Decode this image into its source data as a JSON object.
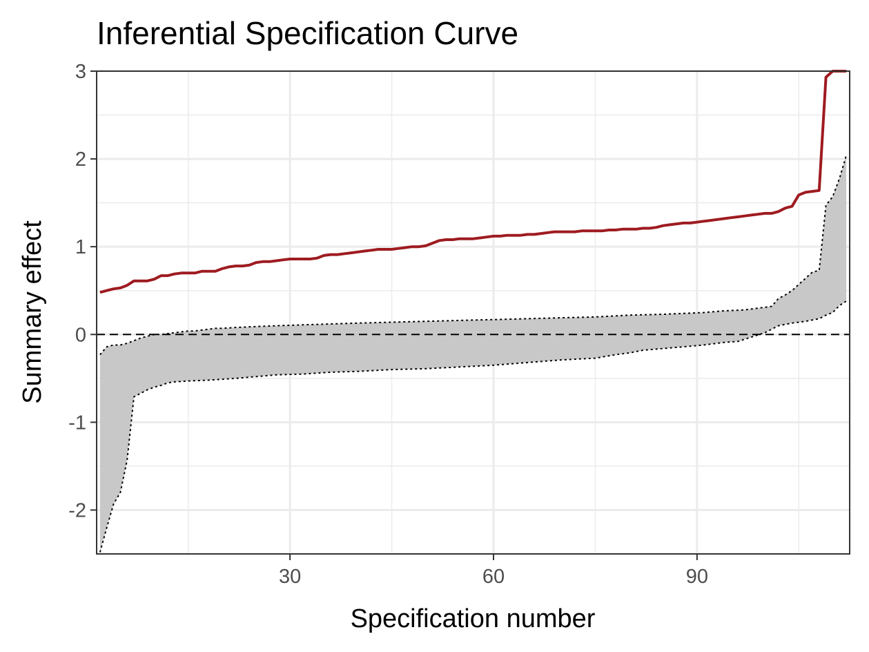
{
  "chart_data": {
    "type": "line",
    "title": "Inferential Specification Curve",
    "xlabel": "Specification number",
    "ylabel": "Summary effect",
    "xlim": [
      1.5,
      112.5
    ],
    "ylim": [
      -2.5,
      3
    ],
    "x_ticks": [
      30,
      60,
      90
    ],
    "x_tick_labels": [
      "30",
      "60",
      "90"
    ],
    "y_ticks": [
      -2,
      -1,
      0,
      1,
      2,
      3
    ],
    "y_tick_labels": [
      "-2",
      "-1",
      "0",
      "1",
      "2",
      "3"
    ],
    "grid": true,
    "legend": "none",
    "reference_line": 0,
    "colors": {
      "observed": "#9e1b20",
      "band": "#c8c8c8",
      "bounds": "#000000",
      "grid": "#ebebeb",
      "panel_border": "#333333"
    },
    "series": [
      {
        "role": "observed",
        "style": "solid",
        "points": [
          [
            2,
            0.48
          ],
          [
            3,
            0.5
          ],
          [
            4,
            0.52
          ],
          [
            5,
            0.53
          ],
          [
            6,
            0.56
          ],
          [
            7,
            0.61
          ],
          [
            8,
            0.61
          ],
          [
            9,
            0.61
          ],
          [
            10,
            0.63
          ],
          [
            11,
            0.67
          ],
          [
            12,
            0.67
          ],
          [
            13,
            0.69
          ],
          [
            14,
            0.7
          ],
          [
            15,
            0.7
          ],
          [
            16,
            0.7
          ],
          [
            17,
            0.72
          ],
          [
            18,
            0.72
          ],
          [
            19,
            0.72
          ],
          [
            20,
            0.75
          ],
          [
            21,
            0.77
          ],
          [
            22,
            0.78
          ],
          [
            23,
            0.78
          ],
          [
            24,
            0.79
          ],
          [
            25,
            0.82
          ],
          [
            26,
            0.83
          ],
          [
            27,
            0.83
          ],
          [
            28,
            0.84
          ],
          [
            29,
            0.85
          ],
          [
            30,
            0.86
          ],
          [
            31,
            0.86
          ],
          [
            32,
            0.86
          ],
          [
            33,
            0.86
          ],
          [
            34,
            0.87
          ],
          [
            35,
            0.9
          ],
          [
            36,
            0.91
          ],
          [
            37,
            0.91
          ],
          [
            38,
            0.92
          ],
          [
            39,
            0.93
          ],
          [
            40,
            0.94
          ],
          [
            41,
            0.95
          ],
          [
            42,
            0.96
          ],
          [
            43,
            0.97
          ],
          [
            44,
            0.97
          ],
          [
            45,
            0.97
          ],
          [
            46,
            0.98
          ],
          [
            47,
            0.99
          ],
          [
            48,
            1.0
          ],
          [
            49,
            1.0
          ],
          [
            50,
            1.01
          ],
          [
            51,
            1.04
          ],
          [
            52,
            1.07
          ],
          [
            53,
            1.08
          ],
          [
            54,
            1.08
          ],
          [
            55,
            1.09
          ],
          [
            56,
            1.09
          ],
          [
            57,
            1.09
          ],
          [
            58,
            1.1
          ],
          [
            59,
            1.11
          ],
          [
            60,
            1.12
          ],
          [
            61,
            1.12
          ],
          [
            62,
            1.13
          ],
          [
            63,
            1.13
          ],
          [
            64,
            1.13
          ],
          [
            65,
            1.14
          ],
          [
            66,
            1.14
          ],
          [
            67,
            1.15
          ],
          [
            68,
            1.16
          ],
          [
            69,
            1.17
          ],
          [
            70,
            1.17
          ],
          [
            71,
            1.17
          ],
          [
            72,
            1.17
          ],
          [
            73,
            1.18
          ],
          [
            74,
            1.18
          ],
          [
            75,
            1.18
          ],
          [
            76,
            1.18
          ],
          [
            77,
            1.19
          ],
          [
            78,
            1.19
          ],
          [
            79,
            1.2
          ],
          [
            80,
            1.2
          ],
          [
            81,
            1.2
          ],
          [
            82,
            1.21
          ],
          [
            83,
            1.21
          ],
          [
            84,
            1.22
          ],
          [
            85,
            1.24
          ],
          [
            86,
            1.25
          ],
          [
            87,
            1.26
          ],
          [
            88,
            1.27
          ],
          [
            89,
            1.27
          ],
          [
            90,
            1.28
          ],
          [
            91,
            1.29
          ],
          [
            92,
            1.3
          ],
          [
            93,
            1.31
          ],
          [
            94,
            1.32
          ],
          [
            95,
            1.33
          ],
          [
            96,
            1.34
          ],
          [
            97,
            1.35
          ],
          [
            98,
            1.36
          ],
          [
            99,
            1.37
          ],
          [
            100,
            1.38
          ],
          [
            101,
            1.38
          ],
          [
            102,
            1.4
          ],
          [
            103,
            1.44
          ],
          [
            104,
            1.46
          ],
          [
            105,
            1.59
          ],
          [
            106,
            1.62
          ],
          [
            107,
            1.63
          ],
          [
            108,
            1.64
          ],
          [
            109,
            2.93
          ],
          [
            110,
            3.0
          ],
          [
            111,
            3.0
          ],
          [
            112,
            3.0
          ]
        ]
      },
      {
        "role": "upper-bound",
        "style": "dotted",
        "points": [
          [
            2,
            -0.23
          ],
          [
            3,
            -0.14
          ],
          [
            4,
            -0.12
          ],
          [
            5,
            -0.12
          ],
          [
            6,
            -0.1
          ],
          [
            7,
            -0.07
          ],
          [
            8,
            -0.04
          ],
          [
            9,
            -0.02
          ],
          [
            10,
            0.0
          ],
          [
            11,
            0.0
          ],
          [
            12,
            0.01
          ],
          [
            13,
            0.02
          ],
          [
            14,
            0.03
          ],
          [
            15,
            0.04
          ],
          [
            16,
            0.04
          ],
          [
            17,
            0.05
          ],
          [
            18,
            0.06
          ],
          [
            19,
            0.07
          ],
          [
            20,
            0.07
          ],
          [
            22,
            0.08
          ],
          [
            25,
            0.09
          ],
          [
            28,
            0.1
          ],
          [
            32,
            0.11
          ],
          [
            36,
            0.12
          ],
          [
            40,
            0.13
          ],
          [
            45,
            0.14
          ],
          [
            50,
            0.15
          ],
          [
            55,
            0.16
          ],
          [
            60,
            0.17
          ],
          [
            65,
            0.18
          ],
          [
            70,
            0.19
          ],
          [
            75,
            0.2
          ],
          [
            80,
            0.22
          ],
          [
            85,
            0.23
          ],
          [
            88,
            0.24
          ],
          [
            91,
            0.25
          ],
          [
            94,
            0.27
          ],
          [
            97,
            0.28
          ],
          [
            99,
            0.3
          ],
          [
            100,
            0.31
          ],
          [
            101,
            0.32
          ],
          [
            102,
            0.41
          ],
          [
            103,
            0.45
          ],
          [
            104,
            0.5
          ],
          [
            105,
            0.57
          ],
          [
            106,
            0.64
          ],
          [
            107,
            0.71
          ],
          [
            108,
            0.73
          ],
          [
            109,
            1.47
          ],
          [
            110,
            1.57
          ],
          [
            111,
            1.78
          ],
          [
            112,
            2.04
          ]
        ]
      },
      {
        "role": "lower-bound",
        "style": "dotted",
        "points": [
          [
            2,
            -2.48
          ],
          [
            3,
            -2.2
          ],
          [
            4,
            -1.93
          ],
          [
            5,
            -1.8
          ],
          [
            6,
            -1.43
          ],
          [
            7,
            -0.71
          ],
          [
            8,
            -0.67
          ],
          [
            9,
            -0.63
          ],
          [
            10,
            -0.6
          ],
          [
            11,
            -0.58
          ],
          [
            12,
            -0.55
          ],
          [
            13,
            -0.54
          ],
          [
            15,
            -0.53
          ],
          [
            18,
            -0.52
          ],
          [
            22,
            -0.5
          ],
          [
            25,
            -0.48
          ],
          [
            28,
            -0.46
          ],
          [
            32,
            -0.45
          ],
          [
            36,
            -0.43
          ],
          [
            40,
            -0.42
          ],
          [
            45,
            -0.4
          ],
          [
            50,
            -0.39
          ],
          [
            55,
            -0.37
          ],
          [
            60,
            -0.35
          ],
          [
            65,
            -0.32
          ],
          [
            70,
            -0.29
          ],
          [
            75,
            -0.27
          ],
          [
            78,
            -0.23
          ],
          [
            80,
            -0.21
          ],
          [
            82,
            -0.18
          ],
          [
            85,
            -0.16
          ],
          [
            88,
            -0.14
          ],
          [
            91,
            -0.12
          ],
          [
            94,
            -0.09
          ],
          [
            96,
            -0.08
          ],
          [
            98,
            -0.03
          ],
          [
            100,
            0.02
          ],
          [
            102,
            0.1
          ],
          [
            104,
            0.13
          ],
          [
            106,
            0.15
          ],
          [
            108,
            0.18
          ],
          [
            109,
            0.22
          ],
          [
            110,
            0.25
          ],
          [
            111,
            0.33
          ],
          [
            112,
            0.38
          ]
        ]
      }
    ]
  }
}
